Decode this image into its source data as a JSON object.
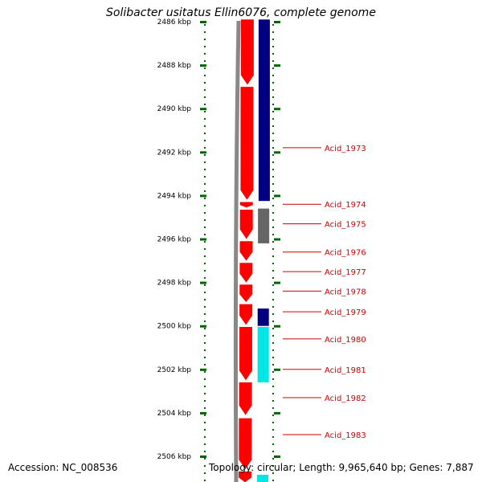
{
  "title": "Solibacter usitatus Ellin6076, complete genome",
  "accession_text": "Accession: NC_008536",
  "summary_text": "Topology: circular; Length: 9,965,640 bp; Genes: 7,887",
  "axis": {
    "unit": "kbp",
    "tick_labels": [
      "2486 kbp",
      "2488 kbp",
      "2490 kbp",
      "2492 kbp",
      "2494 kbp",
      "2496 kbp",
      "2498 kbp",
      "2500 kbp",
      "2502 kbp",
      "2504 kbp",
      "2506 kbp"
    ],
    "tick_values": [
      2486,
      2488,
      2490,
      2492,
      2494,
      2496,
      2498,
      2500,
      2502,
      2504,
      2506
    ],
    "start_kbp": 2485.9,
    "end_kbp": 2507.2
  },
  "gene_labels": [
    {
      "text": "Acid_1973",
      "at_kbp": 2491.8
    },
    {
      "text": "Acid_1974",
      "at_kbp": 2494.4
    },
    {
      "text": "Acid_1975",
      "at_kbp": 2495.3
    },
    {
      "text": "Acid_1976",
      "at_kbp": 2496.6
    },
    {
      "text": "Acid_1977",
      "at_kbp": 2497.5
    },
    {
      "text": "Acid_1978",
      "at_kbp": 2498.4
    },
    {
      "text": "Acid_1979",
      "at_kbp": 2499.35
    },
    {
      "text": "Acid_1980",
      "at_kbp": 2500.6
    },
    {
      "text": "Acid_1981",
      "at_kbp": 2502.0
    },
    {
      "text": "Acid_1982",
      "at_kbp": 2503.3
    },
    {
      "text": "Acid_1983",
      "at_kbp": 2505.0
    }
  ],
  "genes": [
    {
      "start_kbp": 2485.9,
      "end_kbp": 2488.9,
      "strand": "-",
      "color": "#ff0000"
    },
    {
      "start_kbp": 2489.0,
      "end_kbp": 2494.2,
      "strand": "-",
      "color": "#ff0000"
    },
    {
      "start_kbp": 2494.3,
      "end_kbp": 2494.55,
      "strand": "-",
      "color": "#ff0000"
    },
    {
      "start_kbp": 2494.65,
      "end_kbp": 2496.0,
      "strand": "-",
      "color": "#ff0000"
    },
    {
      "start_kbp": 2496.1,
      "end_kbp": 2497.0,
      "strand": "-",
      "color": "#ff0000"
    },
    {
      "start_kbp": 2497.1,
      "end_kbp": 2498.0,
      "strand": "-",
      "color": "#ff0000"
    },
    {
      "start_kbp": 2498.1,
      "end_kbp": 2498.9,
      "strand": "-",
      "color": "#ff0000"
    },
    {
      "start_kbp": 2499.0,
      "end_kbp": 2499.95,
      "strand": "-",
      "color": "#ff0000"
    },
    {
      "start_kbp": 2500.05,
      "end_kbp": 2502.5,
      "strand": "-",
      "color": "#ff0000"
    },
    {
      "start_kbp": 2502.6,
      "end_kbp": 2504.1,
      "strand": "-",
      "color": "#ff0000"
    },
    {
      "start_kbp": 2504.25,
      "end_kbp": 2506.6,
      "strand": "-",
      "color": "#ff0000"
    },
    {
      "start_kbp": 2506.7,
      "end_kbp": 2507.2,
      "strand": "-",
      "color": "#ff0000"
    }
  ],
  "features": [
    {
      "start_kbp": 2485.9,
      "end_kbp": 2494.25,
      "color": "#000080"
    },
    {
      "start_kbp": 2494.6,
      "end_kbp": 2496.2,
      "color": "#666666"
    },
    {
      "start_kbp": 2499.2,
      "end_kbp": 2500.0,
      "color": "#000080"
    },
    {
      "start_kbp": 2500.05,
      "end_kbp": 2502.6,
      "color": "#00e5e5"
    },
    {
      "start_kbp": 2506.85,
      "end_kbp": 2507.2,
      "color": "#00e5e5"
    }
  ],
  "colors": {
    "backbone": "#888888",
    "tick": "#006600",
    "label": "#cc0000"
  }
}
